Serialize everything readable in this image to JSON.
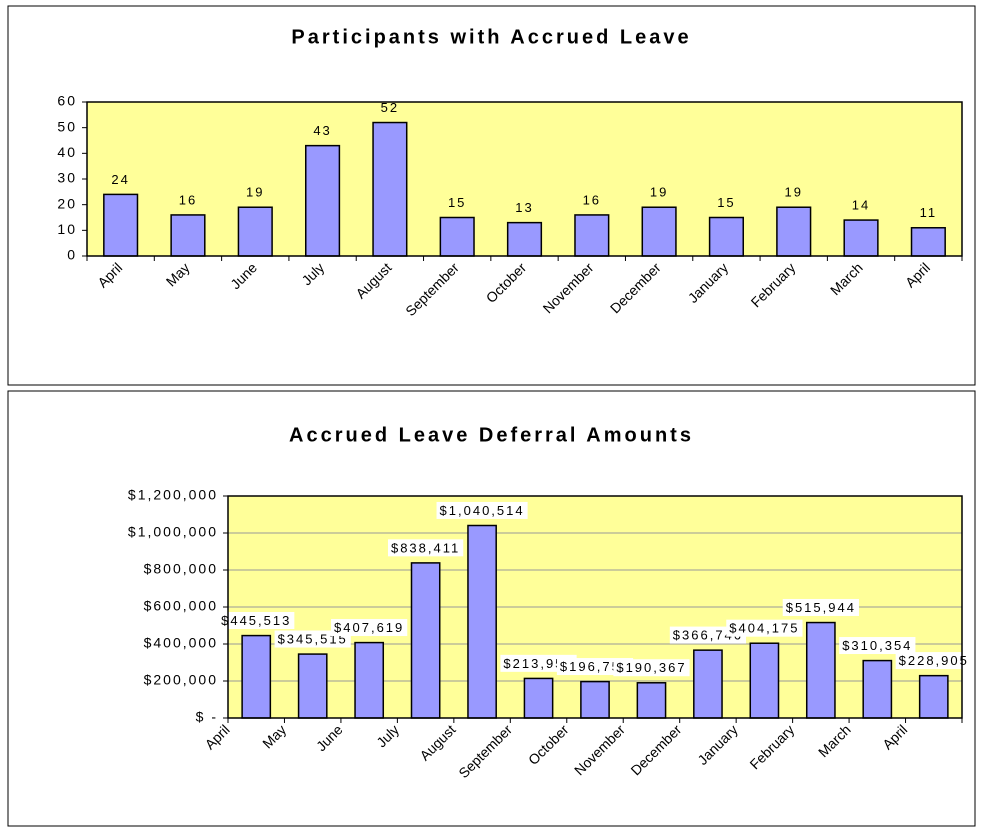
{
  "chart_data": [
    {
      "type": "bar",
      "title": "Participants with Accrued Leave",
      "categories": [
        "April",
        "May",
        "June",
        "July",
        "August",
        "September",
        "October",
        "November",
        "December",
        "January",
        "February",
        "March",
        "April"
      ],
      "values": [
        24,
        16,
        19,
        43,
        52,
        15,
        13,
        16,
        19,
        15,
        19,
        14,
        11
      ],
      "color": "#9999ff",
      "ylim": [
        0,
        60
      ],
      "yticks": [
        0,
        10,
        20,
        30,
        40,
        50,
        60
      ],
      "grid": false
    },
    {
      "type": "bar",
      "title": "Accrued Leave Deferral Amounts",
      "categories": [
        "April",
        "May",
        "June",
        "July",
        "August",
        "September",
        "October",
        "November",
        "December",
        "January",
        "February",
        "March",
        "April"
      ],
      "values": [
        445513,
        345515,
        407619,
        838411,
        1040514,
        213956,
        196750,
        190367,
        366746,
        404175,
        515944,
        310354,
        228905
      ],
      "value_labels": [
        "$445,513",
        "$345,515",
        "$407,619",
        "$838,411",
        "$1,040,514",
        "$213,956",
        "$196,750",
        "$190,367",
        "$366,746",
        "$404,175",
        "$515,944",
        "$310,354",
        "$228,905"
      ],
      "color": "#9999ff",
      "ylim": [
        0,
        1200000
      ],
      "yticks": [
        {
          "value": 0,
          "label": "$ -"
        },
        {
          "value": 200000,
          "label": "$200,000"
        },
        {
          "value": 400000,
          "label": "$400,000"
        },
        {
          "value": 600000,
          "label": "$600,000"
        },
        {
          "value": 800000,
          "label": "$800,000"
        },
        {
          "value": 1000000,
          "label": "$1,000,000"
        },
        {
          "value": 1200000,
          "label": "$1,200,000"
        }
      ],
      "grid": true
    }
  ]
}
